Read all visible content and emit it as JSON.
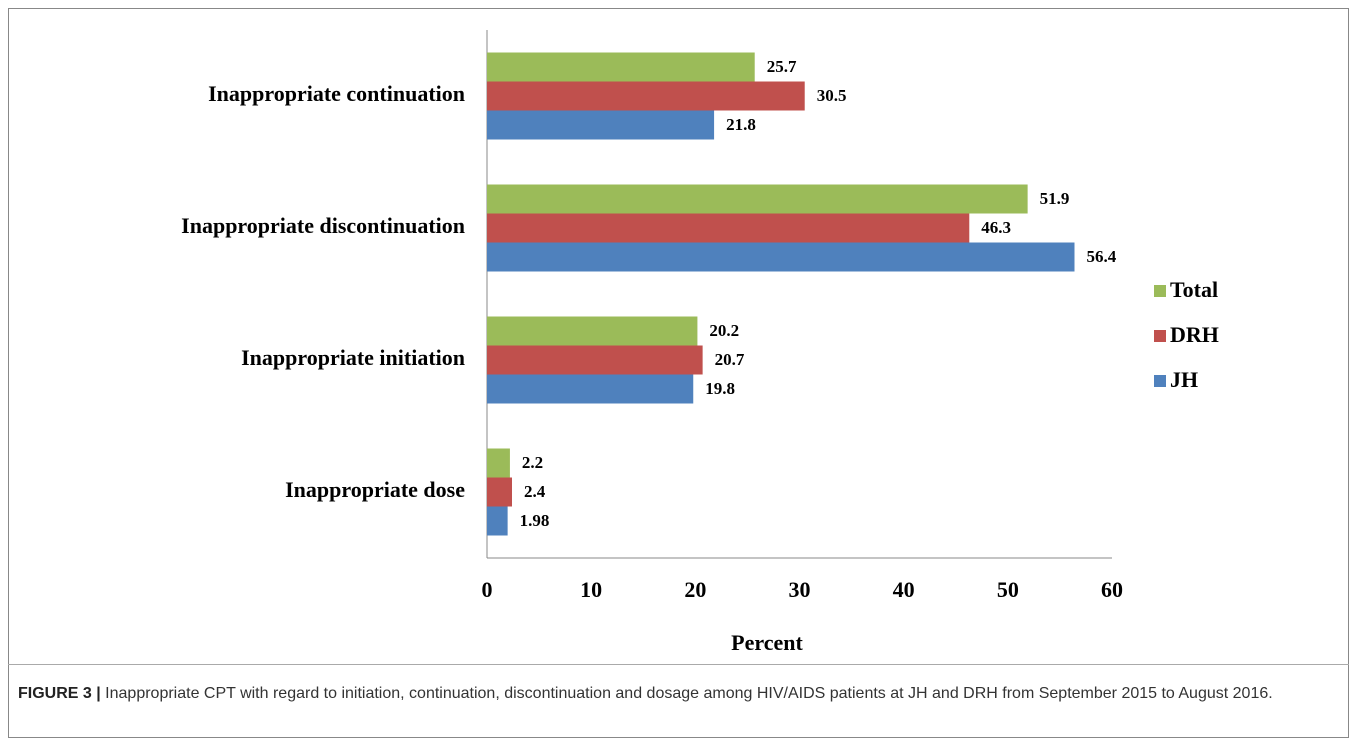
{
  "chart_data": {
    "type": "bar",
    "categories": [
      "Inappropriate continuation",
      "Inappropriate discontinuation",
      "Inappropriate initiation",
      "Inappropriate dose"
    ],
    "series": [
      {
        "name": "Total",
        "color": "#9bbb59",
        "values": [
          25.7,
          51.9,
          20.2,
          2.2
        ]
      },
      {
        "name": "DRH",
        "color": "#c0504d",
        "values": [
          30.5,
          46.3,
          20.7,
          2.4
        ]
      },
      {
        "name": "JH",
        "color": "#4f81bd",
        "values": [
          21.8,
          56.4,
          19.8,
          1.98
        ]
      }
    ],
    "xlabel": "Percent",
    "xlim": [
      0,
      60
    ],
    "xticks": [
      0,
      10,
      20,
      30,
      40,
      50,
      60
    ]
  },
  "caption": {
    "label": "FIGURE 3 |",
    "text": "Inappropriate CPT with regard to initiation, continuation, discontinuation and dosage among HIV/AIDS patients at JH and DRH from September 2015 to August 2016."
  }
}
